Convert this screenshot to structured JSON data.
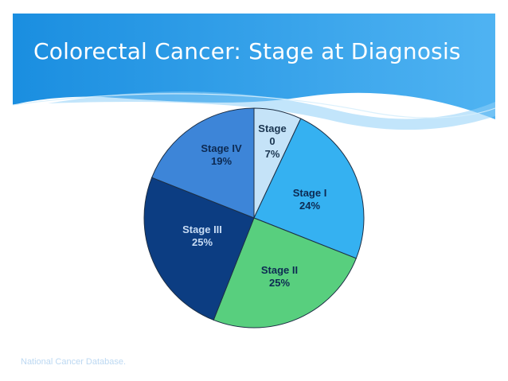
{
  "slide": {
    "title": "Colorectal Cancer: Stage at Diagnosis",
    "source": "National Cancer Database.",
    "colors": {
      "banner_dark": "#1a8ee0",
      "banner_light": "#4fb3f2",
      "title_text": "#ffffff",
      "background": "#ffffff"
    }
  },
  "chart_data": {
    "type": "pie",
    "title": "",
    "start_angle_deg": 0,
    "direction": "clockwise",
    "slices": [
      {
        "label_lines": [
          "Stage",
          "0",
          "7%"
        ],
        "value": 7,
        "color": "#c5e3f8",
        "text_color": "#1a3550"
      },
      {
        "label_lines": [
          "Stage I",
          "24%"
        ],
        "value": 24,
        "color": "#35b1f1",
        "text_color": "#0d2a52"
      },
      {
        "label_lines": [
          "Stage II",
          "25%"
        ],
        "value": 25,
        "color": "#58cf7e",
        "text_color": "#0d2a52"
      },
      {
        "label_lines": [
          "Stage III",
          "25%"
        ],
        "value": 25,
        "color": "#0c3d82",
        "text_color": "#c8dcf4"
      },
      {
        "label_lines": [
          "Stage IV",
          "19%"
        ],
        "value": 19,
        "color": "#3d85d8",
        "text_color": "#0d2a52"
      }
    ]
  }
}
